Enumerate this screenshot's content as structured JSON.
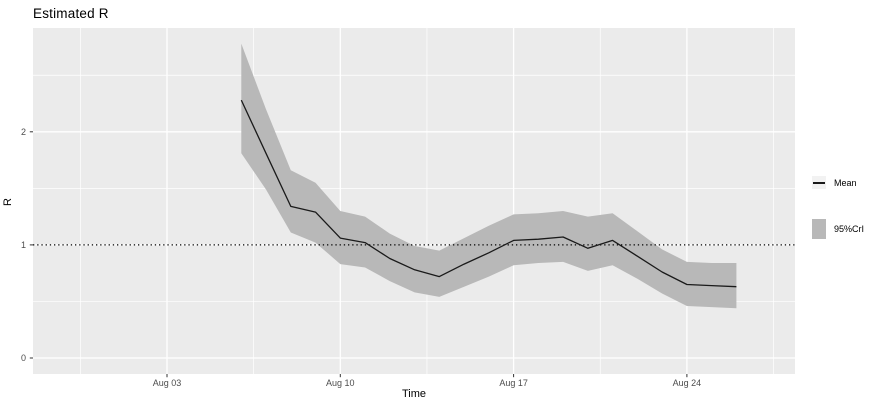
{
  "chart": {
    "title": "Estimated R",
    "x_axis_label": "Time",
    "y_axis_label": "R",
    "legend": {
      "mean_label": "Mean",
      "ci_label": "95%CrI"
    }
  },
  "chart_data": {
    "type": "line",
    "title": "Estimated R",
    "xlabel": "Time",
    "ylabel": "R",
    "x_tick_labels": [
      "Aug 03",
      "Aug 10",
      "Aug 17",
      "Aug 24"
    ],
    "y_tick_labels": [
      "0",
      "1",
      "2"
    ],
    "ylim": [
      -0.14,
      2.92
    ],
    "grid": true,
    "legend_position": "right",
    "reference_line_y": 1,
    "dates": [
      "Aug 06",
      "Aug 07",
      "Aug 08",
      "Aug 09",
      "Aug 10",
      "Aug 11",
      "Aug 12",
      "Aug 13",
      "Aug 14",
      "Aug 15",
      "Aug 16",
      "Aug 17",
      "Aug 18",
      "Aug 19",
      "Aug 20",
      "Aug 21",
      "Aug 22",
      "Aug 23",
      "Aug 24",
      "Aug 25",
      "Aug 26"
    ],
    "series": [
      {
        "name": "Mean",
        "values": [
          2.28,
          1.81,
          1.34,
          1.29,
          1.06,
          1.02,
          0.88,
          0.78,
          0.72,
          0.83,
          0.93,
          1.04,
          1.05,
          1.07,
          0.97,
          1.04,
          0.9,
          0.76,
          0.65,
          0.64,
          0.63
        ]
      },
      {
        "name": "95%CrI lower",
        "values": [
          1.81,
          1.49,
          1.11,
          1.02,
          0.83,
          0.8,
          0.68,
          0.58,
          0.54,
          0.63,
          0.72,
          0.82,
          0.84,
          0.85,
          0.77,
          0.82,
          0.7,
          0.57,
          0.46,
          0.45,
          0.44
        ]
      },
      {
        "name": "95%CrI upper",
        "values": [
          2.78,
          2.2,
          1.66,
          1.55,
          1.3,
          1.25,
          1.1,
          0.99,
          0.95,
          1.06,
          1.17,
          1.27,
          1.28,
          1.3,
          1.25,
          1.28,
          1.12,
          0.96,
          0.85,
          0.84,
          0.84
        ]
      }
    ]
  },
  "colors": {
    "panel_background": "#ebebeb",
    "gridline": "#ffffff",
    "ribbon": "#b8b8b8",
    "mean_line": "#1a1a1a",
    "reference_line": "#000000",
    "tick_mark": "#333333",
    "tick_label": "#4d4d4d",
    "legend_key_background": "#f2f2f2"
  }
}
